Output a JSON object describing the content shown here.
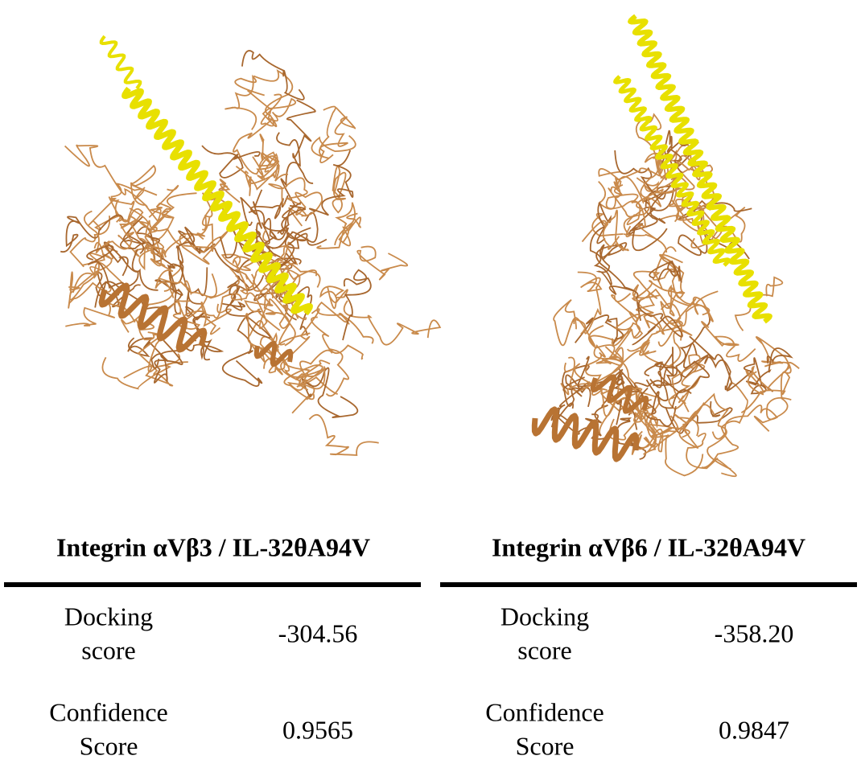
{
  "panels": [
    {
      "title": "Integrin αVβ3 / IL-32θA94V",
      "rows": [
        {
          "label": [
            "Docking",
            "score"
          ],
          "value": "-304.56"
        },
        {
          "label": [
            "Confidence",
            "Score"
          ],
          "value": "0.9565"
        }
      ]
    },
    {
      "title": "Integrin αVβ6 / IL-32θA94V",
      "rows": [
        {
          "label": [
            "Docking",
            "score"
          ],
          "value": "-358.20"
        },
        {
          "label": [
            "Confidence",
            "Score"
          ],
          "value": "0.9847"
        }
      ]
    }
  ]
}
